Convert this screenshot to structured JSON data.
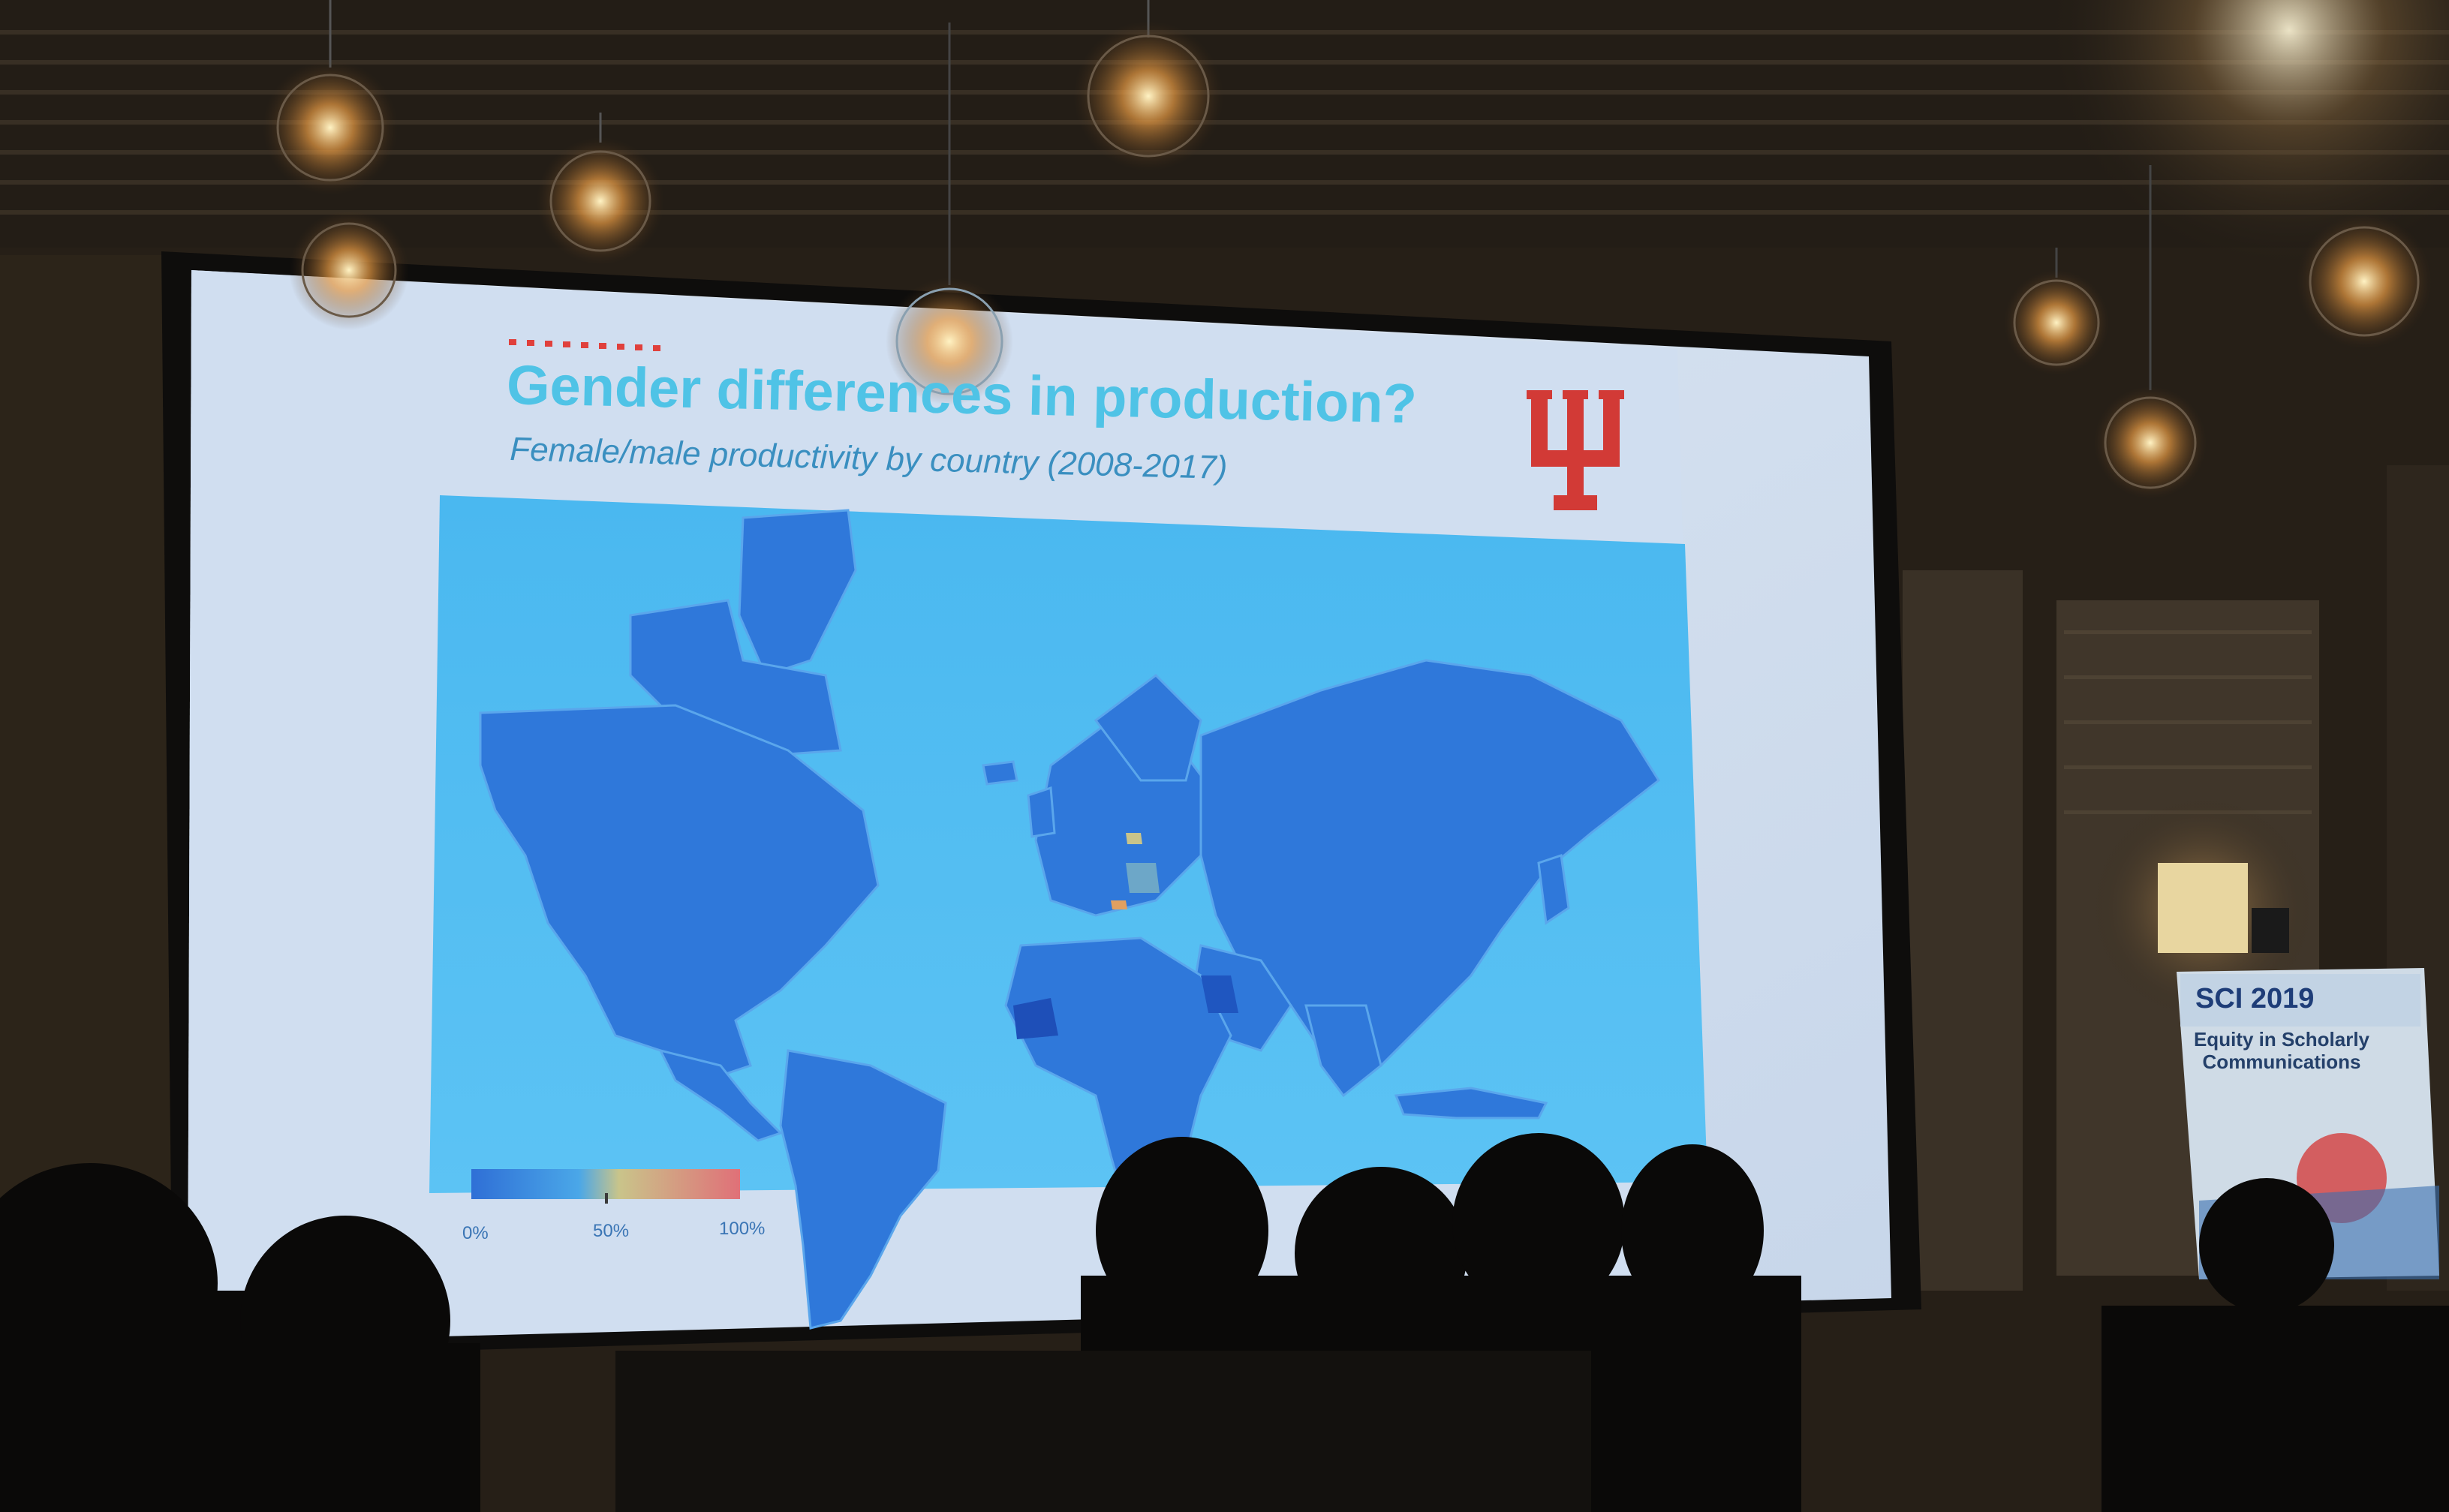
{
  "slide": {
    "title": "Gender differences in production?",
    "subtitle": "Female/male productivity by country (2008-2017)",
    "logo_icon": "indiana-university-trident-logo",
    "legend": {
      "ticks": [
        "0%",
        "50%",
        "100%"
      ],
      "gradient_colors": [
        "#2f6fd6",
        "#4aa7e8",
        "#c9c48a",
        "#e07078"
      ]
    }
  },
  "event_sign": {
    "year": "SCI 2019",
    "subtitle": "Equity in Scholarly Communications"
  },
  "colors": {
    "title": "#4fc3e6",
    "accent_red": "#e0403c",
    "map_ocean": "#4ab8f0",
    "map_land": "#2f78da"
  }
}
